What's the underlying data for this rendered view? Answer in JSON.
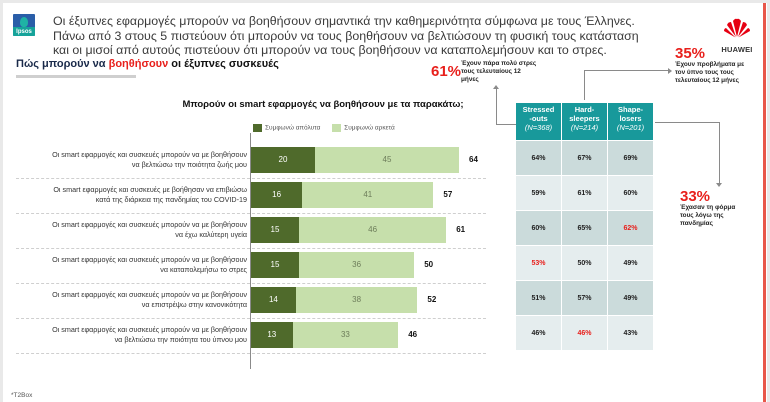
{
  "header": {
    "headline_lines": [
      "Οι έξυπνες εφαρμογές μπορούν να βοηθήσουν σημαντικά την καθημερινότητα σύμφωνα με τους Έλληνες.",
      "Πάνω από 3 στους 5 πιστεύουν ότι μπορούν να τους βοηθήσουν να βελτιώσουν τη φυσική τους κατάσταση",
      "και οι μισοί από αυτούς πιστεύουν ότι μπορούν να τους βοηθήσουν να καταπολεμήσουν και το στρες."
    ],
    "subtitle": {
      "part1": "Πώς μπορούν να ",
      "part2": "βοηθήσουν",
      "part3": " οι έξυπνες συσκευές"
    },
    "logo_left": "Ipsos",
    "logo_right": "HUAWEI"
  },
  "colors": {
    "strongly_agree": "#4f6a2b",
    "somewhat_agree": "#c6dfab",
    "table_header": "#18999b",
    "row_dark": "#cbdbdb",
    "row_light": "#e5edee",
    "highlight": "#e8201c"
  },
  "chart_data": {
    "type": "bar",
    "orientation": "horizontal",
    "stacked": true,
    "title": "Μπορούν οι smart εφαρμογές να βοηθήσουν με τα παρακάτω;",
    "legend": [
      "Συμφωνώ απόλυτα",
      "Συμφωνώ αρκετά"
    ],
    "legend_position": "top",
    "categories": [
      [
        "Οι smart εφαρμογές και συσκευές μπορούν να με βοηθήσουν",
        "να βελτιώσω την ποιότητα ζωής μου"
      ],
      [
        "Οι smart εφαρμογές και συσκευές με βοήθησαν να επιβιώσω",
        "κατά της διάρκεια της πανδημίας του COVID-19"
      ],
      [
        "Οι smart εφαρμογές και συσκευές μπορούν να με βοηθήσουν",
        "να έχω καλύτερη υγεία"
      ],
      [
        "Οι smart εφαρμογές και συσκευές μπορούν να με βοηθήσουν",
        "να καταπολεμήσω το στρες"
      ],
      [
        "Οι smart εφαρμογές και συσκευές  μπορούν να με βοηθήσουν",
        "να επιστρέψω στην κανονικότητα"
      ],
      [
        "Οι smart εφαρμογές και συσκευές μπορούν να με βοηθήσουν",
        "να βελτιώσω την ποιότητα του ύπνου μου"
      ]
    ],
    "series": [
      {
        "name": "Συμφωνώ απόλυτα",
        "values": [
          20,
          16,
          15,
          15,
          14,
          13
        ]
      },
      {
        "name": "Συμφωνώ αρκετά",
        "values": [
          45,
          41,
          46,
          36,
          38,
          33
        ]
      }
    ],
    "totals": [
      64,
      57,
      61,
      50,
      52,
      46
    ],
    "xlim": [
      0,
      100
    ],
    "grid": false
  },
  "annotations": [
    {
      "value": "61%",
      "text": [
        "Έχουν πάρα πολύ στρες",
        "τους τελευταίους 12",
        "μήνες"
      ]
    },
    {
      "value": "35%",
      "text": [
        "Έχουν προβλήματα με",
        "τον ύπνο τους τους",
        "τελευταίους 12 μήνες"
      ]
    },
    {
      "value": "33%",
      "text": [
        "Έχασαν τη φόρμα",
        "τους λόγω της",
        "πανδημίας"
      ]
    }
  ],
  "table": {
    "columns": [
      {
        "line1": "Stressed",
        "line2": "-outs",
        "n": "(N=368)"
      },
      {
        "line1": "Hard-",
        "line2": "sleepers",
        "n": "(N=214)"
      },
      {
        "line1": "Shape-",
        "line2": "losers",
        "n": "(N=201)"
      }
    ],
    "rows": [
      [
        {
          "v": "64%",
          "hl": false
        },
        {
          "v": "67%",
          "hl": false
        },
        {
          "v": "69%",
          "hl": false
        }
      ],
      [
        {
          "v": "59%",
          "hl": false
        },
        {
          "v": "61%",
          "hl": false
        },
        {
          "v": "60%",
          "hl": false
        }
      ],
      [
        {
          "v": "60%",
          "hl": false
        },
        {
          "v": "65%",
          "hl": false
        },
        {
          "v": "62%",
          "hl": true
        }
      ],
      [
        {
          "v": "53%",
          "hl": true
        },
        {
          "v": "50%",
          "hl": false
        },
        {
          "v": "49%",
          "hl": false
        }
      ],
      [
        {
          "v": "51%",
          "hl": false
        },
        {
          "v": "57%",
          "hl": false
        },
        {
          "v": "49%",
          "hl": false
        }
      ],
      [
        {
          "v": "46%",
          "hl": false
        },
        {
          "v": "46%",
          "hl": true
        },
        {
          "v": "43%",
          "hl": false
        }
      ]
    ]
  },
  "footnote": "*T2Box"
}
